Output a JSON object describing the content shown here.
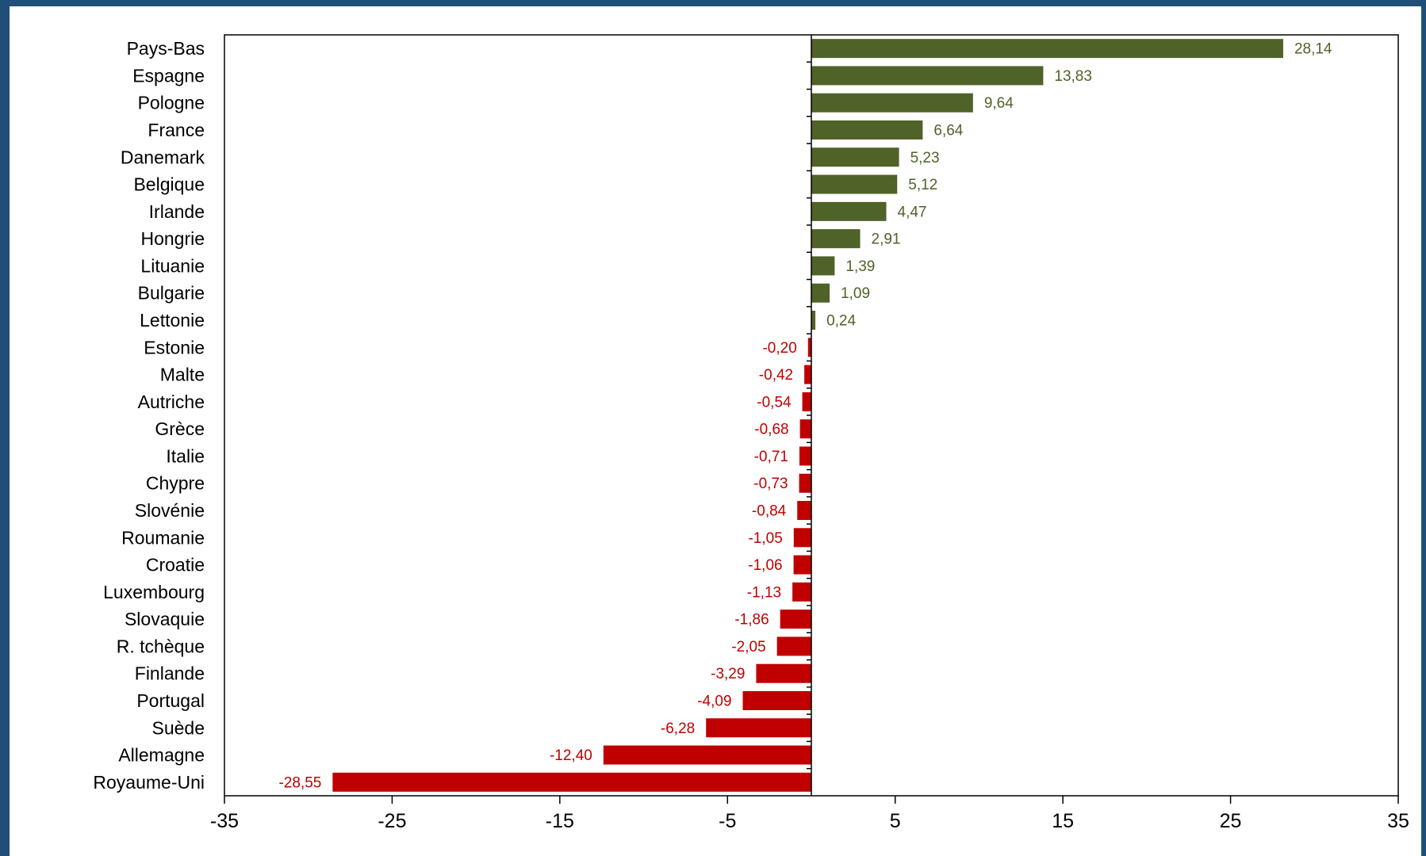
{
  "chart_data": {
    "type": "bar",
    "orientation": "horizontal",
    "categories": [
      "Pays-Bas",
      "Espagne",
      "Pologne",
      "France",
      "Danemark",
      "Belgique",
      "Irlande",
      "Hongrie",
      "Lituanie",
      "Bulgarie",
      "Lettonie",
      "Estonie",
      "Malte",
      "Autriche",
      "Grèce",
      "Italie",
      "Chypre",
      "Slovénie",
      "Roumanie",
      "Croatie",
      "Luxembourg",
      "Slovaquie",
      "R. tchèque",
      "Finlande",
      "Portugal",
      "Suède",
      "Allemagne",
      "Royaume-Uni"
    ],
    "values": [
      28.14,
      13.83,
      9.64,
      6.64,
      5.23,
      5.12,
      4.47,
      2.91,
      1.39,
      1.09,
      0.24,
      -0.2,
      -0.42,
      -0.54,
      -0.68,
      -0.71,
      -0.73,
      -0.84,
      -1.05,
      -1.06,
      -1.13,
      -1.86,
      -2.05,
      -3.29,
      -4.09,
      -6.28,
      -12.4,
      -28.55
    ],
    "data_labels": [
      "28,14",
      "13,83",
      "9,64",
      "6,64",
      "5,23",
      "5,12",
      "4,47",
      "2,91",
      "1,39",
      "1,09",
      "0,24",
      "-0,20",
      "-0,42",
      "-0,54",
      "-0,68",
      "-0,71",
      "-0,73",
      "-0,84",
      "-1,05",
      "-1,06",
      "-1,13",
      "-1,86",
      "-2,05",
      "-3,29",
      "-4,09",
      "-6,28",
      "-12,40",
      "-28,55"
    ],
    "xlim": [
      -35,
      35
    ],
    "xticks": [
      -35,
      -25,
      -15,
      -5,
      5,
      15,
      25,
      35
    ],
    "xtick_labels": [
      "-35",
      "-25",
      "-15",
      "-5",
      "5",
      "15",
      "25",
      "35"
    ],
    "title": "",
    "xlabel": "",
    "ylabel": "",
    "grid": false,
    "legend": "none",
    "colors": {
      "positive": "#4f6228",
      "negative": "#c00000",
      "frame": "#1f4e79"
    }
  }
}
